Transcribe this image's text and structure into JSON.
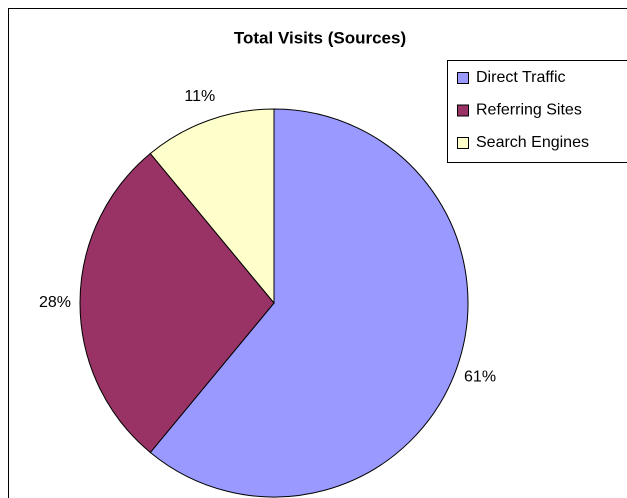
{
  "chart_data": {
    "type": "pie",
    "title": "Total Visits (Sources)",
    "categories": [
      "Direct Traffic",
      "Referring Sites",
      "Search Engines"
    ],
    "values": [
      61,
      28,
      11
    ],
    "value_labels": [
      "61%",
      "28%",
      "11%"
    ],
    "colors": [
      "#9999ff",
      "#993366",
      "#ffffcc"
    ],
    "legend": "right"
  }
}
